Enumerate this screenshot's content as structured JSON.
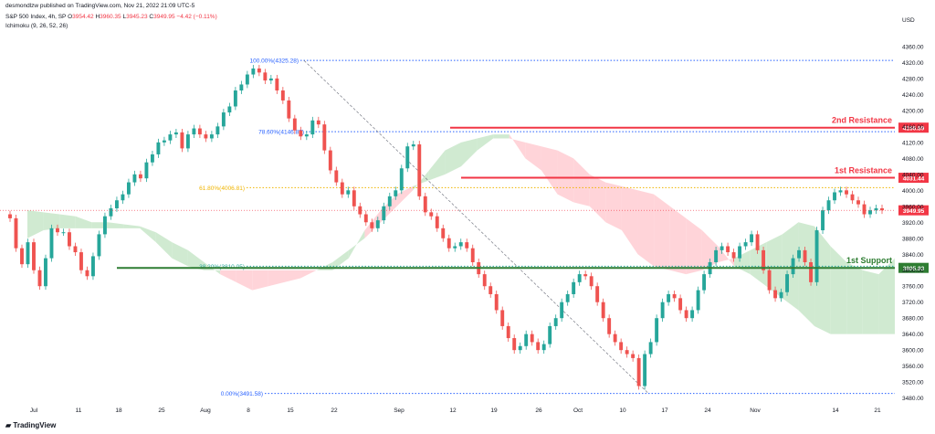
{
  "header": {
    "published_line": "desmondlzw published on TradingView.com, Nov 21, 2022 21:09 UTC-5",
    "symbol_line": "S&P 500 Index, 4h, SP",
    "ohlc": {
      "o_label": "O",
      "o": "3954.42",
      "h_label": "H",
      "h": "3960.35",
      "l_label": "L",
      "l": "3945.23",
      "c_label": "C",
      "c": "3949.95",
      "change": "−4.42 (−0.11%)"
    },
    "indicator": "Ichimoku (9, 26, 52, 26)",
    "currency": "USD"
  },
  "footer": {
    "brand": "TradingView"
  },
  "colors": {
    "up": "#26a69a",
    "down": "#ef5350",
    "cloud_bull": "#c8e6c9",
    "cloud_bear": "#ffcdd2",
    "resistance": "#f23645",
    "support": "#2e7d32",
    "fib": "#2962ff",
    "fib_mid": "#f0b400"
  },
  "chart_data": {
    "type": "candlestick",
    "title": "S&P 500 Index, 4h, SP",
    "ylim": [
      3470,
      4385
    ],
    "y_ticks": [
      3480,
      3520,
      3560,
      3600,
      3640,
      3680,
      3720,
      3760,
      3800,
      3840,
      3880,
      3920,
      3960,
      4000,
      4040,
      4080,
      4120,
      4160,
      4200,
      4240,
      4280,
      4320,
      4360
    ],
    "x_ticks": [
      "Jul",
      "11",
      "18",
      "25",
      "Aug",
      "8",
      "15",
      "22",
      "Sep",
      "12",
      "19",
      "26",
      "Oct",
      "10",
      "17",
      "24",
      "Nov",
      "14",
      "21"
    ],
    "closes": [
      3930,
      3855,
      3815,
      3870,
      3800,
      3760,
      3830,
      3905,
      3895,
      3895,
      3860,
      3845,
      3800,
      3785,
      3835,
      3890,
      3935,
      3955,
      3975,
      3990,
      4020,
      4040,
      4030,
      4070,
      4090,
      4120,
      4125,
      4140,
      4145,
      4105,
      4140,
      4155,
      4140,
      4130,
      4140,
      4160,
      4195,
      4210,
      4250,
      4265,
      4290,
      4305,
      4295,
      4275,
      4280,
      4250,
      4225,
      4180,
      4150,
      4135,
      4140,
      4175,
      4165,
      4100,
      4050,
      4020,
      3990,
      4000,
      3960,
      3940,
      3920,
      3905,
      3925,
      3960,
      3985,
      4000,
      4055,
      4110,
      4115,
      3985,
      3945,
      3935,
      3905,
      3880,
      3855,
      3860,
      3870,
      3855,
      3820,
      3790,
      3760,
      3740,
      3700,
      3660,
      3630,
      3600,
      3610,
      3640,
      3620,
      3600,
      3615,
      3660,
      3680,
      3720,
      3740,
      3770,
      3790,
      3785,
      3760,
      3720,
      3680,
      3640,
      3620,
      3600,
      3590,
      3580,
      3510,
      3590,
      3620,
      3680,
      3720,
      3740,
      3730,
      3700,
      3680,
      3700,
      3750,
      3790,
      3820,
      3850,
      3860,
      3845,
      3830,
      3860,
      3870,
      3890,
      3850,
      3800,
      3750,
      3730,
      3745,
      3790,
      3830,
      3850,
      3820,
      3770,
      3900,
      3950,
      3975,
      3995,
      4000,
      3990,
      3975,
      3965,
      3940,
      3950,
      3955,
      3950
    ],
    "fib_levels": [
      {
        "label": "100.00%(4325.28)",
        "value": 4325.28
      },
      {
        "label": "78.60%(4146.87)",
        "value": 4146.87
      },
      {
        "label": "61.80%(4006.81)",
        "value": 4006.81
      },
      {
        "label": "38.20%(3810.05)",
        "value": 3810.05
      },
      {
        "label": "0.00%(3491.58)",
        "value": 3491.58
      }
    ],
    "levels": [
      {
        "name": "2nd Resistance",
        "value": 4156.89,
        "tag": "4156.89",
        "kind": "resistance"
      },
      {
        "name": "1st Resistance",
        "value": 4031.44,
        "tag": "4031.44",
        "kind": "resistance"
      },
      {
        "name": "1st Support",
        "value": 3805.83,
        "tag": "3805.83",
        "kind": "support"
      }
    ],
    "last_price": {
      "value": 3949.95,
      "tag": "3949.95"
    },
    "cloud_a": [
      3950,
      3945,
      3940,
      3935,
      3920,
      3920,
      3915,
      3910,
      3895,
      3870,
      3850,
      3820,
      3790,
      3770,
      3750,
      3760,
      3770,
      3780,
      3800,
      3820,
      3850,
      3880,
      3920,
      3960,
      4000,
      4050,
      4100,
      4120,
      4130,
      4140,
      4140,
      4080,
      4050,
      3990,
      3970,
      3960,
      3920,
      3900,
      3840,
      3810,
      3800,
      3790,
      3800,
      3820,
      3830,
      3850,
      3870,
      3890,
      3920,
      3910,
      3860,
      3820,
      3800,
      3790,
      3830
    ],
    "cloud_b": [
      3880,
      3900,
      3905,
      3905,
      3905,
      3905,
      3905,
      3905,
      3870,
      3830,
      3810,
      3800,
      3800,
      3800,
      3800,
      3800,
      3800,
      3800,
      3800,
      3800,
      3830,
      3900,
      3950,
      3990,
      4010,
      4025,
      4040,
      4060,
      4100,
      4130,
      4130,
      4120,
      4110,
      4100,
      4080,
      4040,
      4020,
      4010,
      4000,
      3990,
      3960,
      3930,
      3900,
      3860,
      3810,
      3790,
      3760,
      3730,
      3700,
      3660,
      3640,
      3640,
      3640,
      3640,
      3640
    ]
  }
}
